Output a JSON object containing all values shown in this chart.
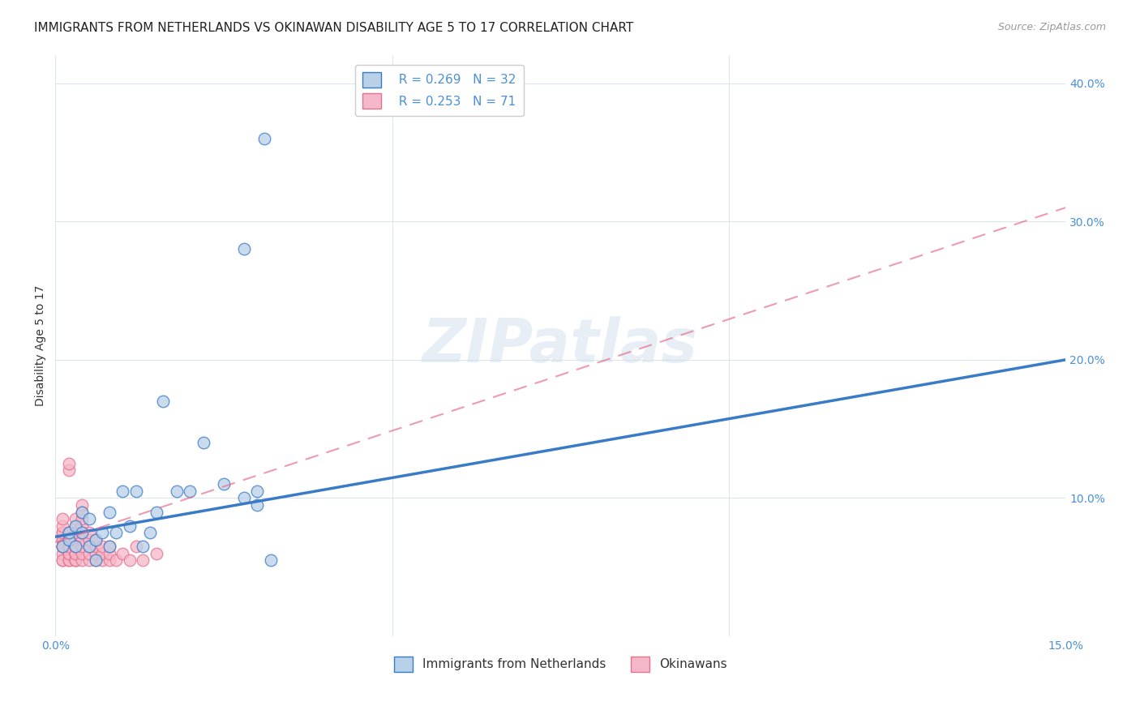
{
  "title": "IMMIGRANTS FROM NETHERLANDS VS OKINAWAN DISABILITY AGE 5 TO 17 CORRELATION CHART",
  "source": "Source: ZipAtlas.com",
  "ylabel": "Disability Age 5 to 17",
  "xlim": [
    0.0,
    0.15
  ],
  "ylim": [
    0.0,
    0.42
  ],
  "xticks": [
    0.0,
    0.05,
    0.1,
    0.15
  ],
  "xticklabels": [
    "0.0%",
    "",
    "",
    "15.0%"
  ],
  "yticks": [
    0.0,
    0.1,
    0.2,
    0.3,
    0.4
  ],
  "yticklabels": [
    "",
    "10.0%",
    "20.0%",
    "30.0%",
    "40.0%"
  ],
  "legend_r1": "R = 0.269",
  "legend_n1": "N = 32",
  "legend_r2": "R = 0.253",
  "legend_n2": "N = 71",
  "netherlands_color": "#b8d0e8",
  "okinawan_color": "#f5b8c8",
  "netherlands_line_color": "#3a7bc8",
  "okinawan_line_color": "#e87090",
  "background_color": "#ffffff",
  "title_fontsize": 11,
  "axis_label_fontsize": 10,
  "tick_fontsize": 10,
  "nl_trend_x0": 0.0,
  "nl_trend_y0": 0.072,
  "nl_trend_x1": 0.15,
  "nl_trend_y1": 0.2,
  "ok_trend_x0": 0.0,
  "ok_trend_y0": 0.068,
  "ok_trend_x1": 0.15,
  "ok_trend_y1": 0.31,
  "netherlands_x": [
    0.001,
    0.002,
    0.002,
    0.003,
    0.003,
    0.004,
    0.004,
    0.005,
    0.005,
    0.006,
    0.006,
    0.007,
    0.008,
    0.008,
    0.009,
    0.01,
    0.011,
    0.012,
    0.013,
    0.014,
    0.015,
    0.016,
    0.018,
    0.02,
    0.022,
    0.025,
    0.028,
    0.03,
    0.032,
    0.028,
    0.03,
    0.031
  ],
  "netherlands_y": [
    0.065,
    0.07,
    0.075,
    0.065,
    0.08,
    0.075,
    0.09,
    0.065,
    0.085,
    0.07,
    0.055,
    0.075,
    0.09,
    0.065,
    0.075,
    0.105,
    0.08,
    0.105,
    0.065,
    0.075,
    0.09,
    0.17,
    0.105,
    0.105,
    0.14,
    0.11,
    0.1,
    0.095,
    0.055,
    0.28,
    0.105,
    0.36
  ],
  "okinawan_x": [
    0.001,
    0.001,
    0.001,
    0.001,
    0.001,
    0.001,
    0.001,
    0.001,
    0.001,
    0.001,
    0.001,
    0.001,
    0.002,
    0.002,
    0.002,
    0.002,
    0.002,
    0.002,
    0.002,
    0.002,
    0.002,
    0.002,
    0.002,
    0.002,
    0.002,
    0.002,
    0.003,
    0.003,
    0.003,
    0.003,
    0.003,
    0.003,
    0.003,
    0.003,
    0.003,
    0.003,
    0.003,
    0.003,
    0.003,
    0.003,
    0.003,
    0.004,
    0.004,
    0.004,
    0.004,
    0.004,
    0.004,
    0.004,
    0.004,
    0.004,
    0.005,
    0.005,
    0.005,
    0.005,
    0.005,
    0.006,
    0.006,
    0.006,
    0.006,
    0.007,
    0.007,
    0.007,
    0.008,
    0.008,
    0.008,
    0.009,
    0.01,
    0.011,
    0.012,
    0.013,
    0.015
  ],
  "okinawan_y": [
    0.055,
    0.065,
    0.07,
    0.075,
    0.06,
    0.065,
    0.07,
    0.055,
    0.075,
    0.08,
    0.065,
    0.085,
    0.06,
    0.065,
    0.07,
    0.075,
    0.055,
    0.06,
    0.065,
    0.07,
    0.12,
    0.125,
    0.055,
    0.06,
    0.065,
    0.07,
    0.055,
    0.06,
    0.065,
    0.07,
    0.075,
    0.08,
    0.085,
    0.055,
    0.06,
    0.065,
    0.07,
    0.075,
    0.055,
    0.06,
    0.065,
    0.055,
    0.06,
    0.065,
    0.07,
    0.075,
    0.08,
    0.085,
    0.09,
    0.095,
    0.055,
    0.06,
    0.065,
    0.07,
    0.075,
    0.055,
    0.06,
    0.065,
    0.07,
    0.055,
    0.06,
    0.065,
    0.055,
    0.06,
    0.065,
    0.055,
    0.06,
    0.055,
    0.065,
    0.055,
    0.06
  ]
}
